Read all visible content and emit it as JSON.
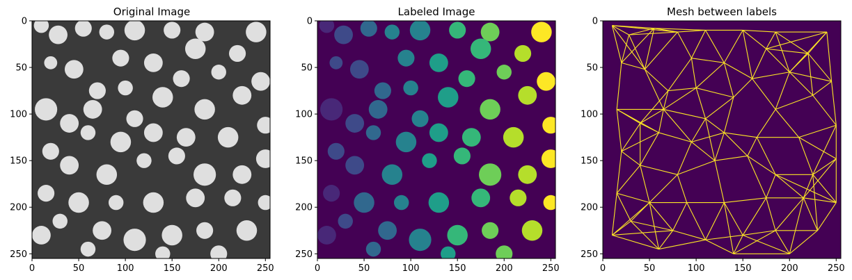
{
  "chart_data": [
    {
      "type": "heatmap",
      "title": "Original Image",
      "colormap": "gray",
      "xlim": [
        0,
        255
      ],
      "ylim": [
        255,
        0
      ],
      "xticks": [
        0,
        50,
        100,
        150,
        200,
        250
      ],
      "yticks": [
        0,
        50,
        100,
        150,
        200,
        250
      ],
      "xtick_labels": [
        "0",
        "50",
        "100",
        "150",
        "200",
        "250"
      ],
      "ytick_labels": [
        "0",
        "50",
        "100",
        "150",
        "200",
        "250"
      ],
      "blob_color": "#e8e8e8",
      "background_color": "#3a3a3a"
    },
    {
      "type": "heatmap",
      "title": "Labeled Image",
      "colormap": "viridis",
      "xlim": [
        0,
        255
      ],
      "ylim": [
        255,
        0
      ],
      "xticks": [
        0,
        50,
        100,
        150,
        200,
        250
      ],
      "yticks": [
        0,
        50,
        100,
        150,
        200,
        250
      ],
      "xtick_labels": [
        "0",
        "50",
        "100",
        "150",
        "200",
        "250"
      ],
      "ytick_labels": [
        "0",
        "50",
        "100",
        "150",
        "200",
        "250"
      ],
      "background_color": "#440154"
    },
    {
      "type": "heatmap",
      "title": "Mesh between labels",
      "colormap": "viridis",
      "xlim": [
        0,
        255
      ],
      "ylim": [
        255,
        0
      ],
      "xticks": [
        0,
        50,
        100,
        150,
        200,
        250
      ],
      "yticks": [
        0,
        50,
        100,
        150,
        200,
        250
      ],
      "xtick_labels": [
        "0",
        "50",
        "100",
        "150",
        "200",
        "250"
      ],
      "ytick_labels": [
        "0",
        "50",
        "100",
        "150",
        "200",
        "250"
      ],
      "background_color": "#440154",
      "edge_color": "#fde725"
    }
  ],
  "blobs": [
    {
      "x": 10,
      "y": 5,
      "r": 8
    },
    {
      "x": 28,
      "y": 15,
      "r": 10
    },
    {
      "x": 55,
      "y": 8,
      "r": 9
    },
    {
      "x": 80,
      "y": 12,
      "r": 8
    },
    {
      "x": 110,
      "y": 10,
      "r": 11
    },
    {
      "x": 150,
      "y": 10,
      "r": 9
    },
    {
      "x": 185,
      "y": 12,
      "r": 10
    },
    {
      "x": 240,
      "y": 12,
      "r": 11
    },
    {
      "x": 20,
      "y": 45,
      "r": 7
    },
    {
      "x": 45,
      "y": 52,
      "r": 10
    },
    {
      "x": 95,
      "y": 40,
      "r": 9
    },
    {
      "x": 130,
      "y": 45,
      "r": 10
    },
    {
      "x": 175,
      "y": 30,
      "r": 11
    },
    {
      "x": 220,
      "y": 35,
      "r": 9
    },
    {
      "x": 245,
      "y": 65,
      "r": 10
    },
    {
      "x": 200,
      "y": 55,
      "r": 8
    },
    {
      "x": 70,
      "y": 75,
      "r": 9
    },
    {
      "x": 100,
      "y": 72,
      "r": 8
    },
    {
      "x": 160,
      "y": 62,
      "r": 9
    },
    {
      "x": 110,
      "y": 105,
      "r": 9
    },
    {
      "x": 15,
      "y": 95,
      "r": 12
    },
    {
      "x": 40,
      "y": 110,
      "r": 10
    },
    {
      "x": 65,
      "y": 95,
      "r": 10
    },
    {
      "x": 140,
      "y": 82,
      "r": 11
    },
    {
      "x": 185,
      "y": 95,
      "r": 11
    },
    {
      "x": 225,
      "y": 80,
      "r": 10
    },
    {
      "x": 20,
      "y": 140,
      "r": 9
    },
    {
      "x": 60,
      "y": 120,
      "r": 8
    },
    {
      "x": 95,
      "y": 130,
      "r": 11
    },
    {
      "x": 130,
      "y": 120,
      "r": 10
    },
    {
      "x": 165,
      "y": 125,
      "r": 10
    },
    {
      "x": 210,
      "y": 125,
      "r": 11
    },
    {
      "x": 250,
      "y": 112,
      "r": 9
    },
    {
      "x": 40,
      "y": 155,
      "r": 10
    },
    {
      "x": 80,
      "y": 165,
      "r": 11
    },
    {
      "x": 120,
      "y": 150,
      "r": 8
    },
    {
      "x": 155,
      "y": 145,
      "r": 9
    },
    {
      "x": 185,
      "y": 165,
      "r": 12
    },
    {
      "x": 225,
      "y": 165,
      "r": 10
    },
    {
      "x": 250,
      "y": 148,
      "r": 10
    },
    {
      "x": 15,
      "y": 185,
      "r": 9
    },
    {
      "x": 50,
      "y": 195,
      "r": 11
    },
    {
      "x": 90,
      "y": 195,
      "r": 8
    },
    {
      "x": 130,
      "y": 195,
      "r": 11
    },
    {
      "x": 175,
      "y": 190,
      "r": 10
    },
    {
      "x": 215,
      "y": 190,
      "r": 9
    },
    {
      "x": 250,
      "y": 195,
      "r": 8
    },
    {
      "x": 10,
      "y": 230,
      "r": 10
    },
    {
      "x": 30,
      "y": 215,
      "r": 8
    },
    {
      "x": 75,
      "y": 225,
      "r": 10
    },
    {
      "x": 110,
      "y": 235,
      "r": 12
    },
    {
      "x": 150,
      "y": 230,
      "r": 11
    },
    {
      "x": 185,
      "y": 225,
      "r": 9
    },
    {
      "x": 230,
      "y": 225,
      "r": 11
    },
    {
      "x": 60,
      "y": 245,
      "r": 8
    },
    {
      "x": 140,
      "y": 250,
      "r": 8
    },
    {
      "x": 200,
      "y": 250,
      "r": 9
    }
  ]
}
